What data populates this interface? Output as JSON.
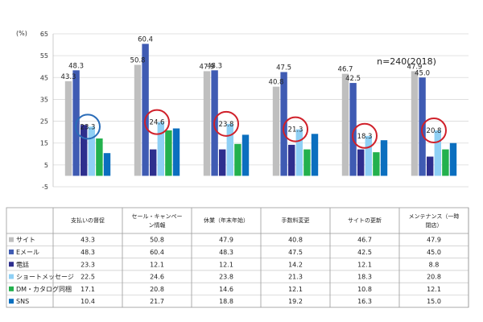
{
  "chart_data": {
    "type": "bar",
    "ylabel": "(%)",
    "annotation": "n=240(2018)",
    "ylim": [
      -5,
      65
    ],
    "yticks": [
      -5,
      5,
      15,
      25,
      35,
      45,
      55,
      65
    ],
    "grid": true,
    "legend_placement": "table-left",
    "categories": [
      "支払いの督促",
      "セール・キャンペーン情報",
      "休業（年末年始）",
      "手数料変更",
      "サイトの更新",
      "メンテナンス（一時閉店）"
    ],
    "series": [
      {
        "name": "サイト",
        "color": "#bfbfbf",
        "values": [
          43.3,
          50.8,
          47.9,
          40.8,
          46.7,
          47.9
        ]
      },
      {
        "name": "Eメール",
        "color": "#3f5bb3",
        "values": [
          48.3,
          60.4,
          48.3,
          47.5,
          42.5,
          45.0
        ]
      },
      {
        "name": "電話",
        "color": "#2e2f8e",
        "values": [
          23.3,
          12.1,
          12.1,
          14.2,
          12.1,
          8.8
        ]
      },
      {
        "name": "ショートメッセージ",
        "color": "#8fd0f5",
        "values": [
          22.5,
          24.6,
          23.8,
          21.3,
          18.3,
          20.8
        ]
      },
      {
        "name": "DM・カタログ同梱",
        "color": "#23b14d",
        "values": [
          17.1,
          20.8,
          14.6,
          12.1,
          10.8,
          12.1
        ]
      },
      {
        "name": "SNS",
        "color": "#0b6fbf",
        "values": [
          10.4,
          21.7,
          18.8,
          19.2,
          16.3,
          15.0
        ]
      }
    ],
    "bar_labels_shown": [
      [
        "43.3",
        "48.3",
        "23.3"
      ],
      [
        "50.8",
        "60.4",
        "24.6"
      ],
      [
        "47.9",
        "48.3",
        "23.8"
      ],
      [
        "40.8",
        "47.5",
        "21.3"
      ],
      [
        "46.7",
        "42.5",
        "18.3"
      ],
      [
        "47.9",
        "45.0",
        "20.8"
      ]
    ],
    "table_rows": [
      [
        "43.3",
        "50.8",
        "47.9",
        "40.8",
        "46.7",
        "47.9"
      ],
      [
        "48.3",
        "60.4",
        "48.3",
        "47.5",
        "42.5",
        "45.0"
      ],
      [
        "23.3",
        "12.1",
        "12.1",
        "14.2",
        "12.1",
        "8.8"
      ],
      [
        "22.5",
        "24.6",
        "23.8",
        "21.3",
        "18.3",
        "20.8"
      ],
      [
        "17.1",
        "20.8",
        "14.6",
        "12.1",
        "10.8",
        "12.1"
      ],
      [
        "10.4",
        "21.7",
        "18.8",
        "19.2",
        "16.3",
        "15.0"
      ]
    ],
    "highlight_circle_colors": [
      "#2a6cb8",
      "#d0202a",
      "#d0202a",
      "#d0202a",
      "#d0202a",
      "#d0202a"
    ]
  }
}
